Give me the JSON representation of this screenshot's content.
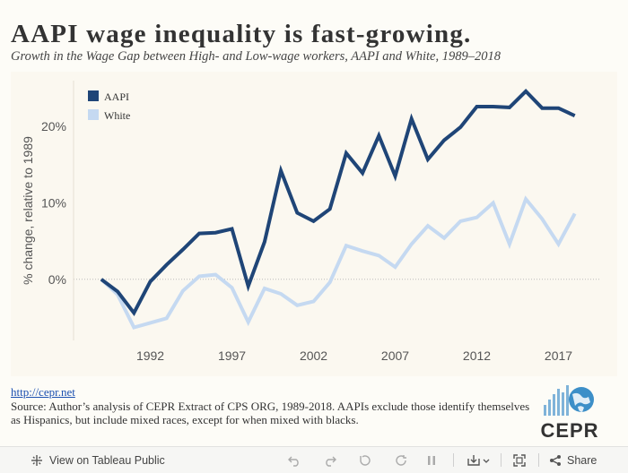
{
  "title": "AAPI  wage  inequality  is  fast-growing.",
  "subtitle": "Growth in the Wage Gap between High- and Low-wage workers, AAPI and White, 1989–2018",
  "colors": {
    "aapi": "#1f4577",
    "white": "#c5d9f1",
    "axis_text": "#555555"
  },
  "chart_data": {
    "type": "line",
    "ylabel": "% change, relative to 1989",
    "xlabel": "",
    "xlim": [
      1987.3,
      2019.5
    ],
    "ylim": [
      -8,
      26
    ],
    "yticks": [
      0,
      10,
      20
    ],
    "ytick_labels": [
      "0%",
      "10%",
      "20%"
    ],
    "xticks": [
      1992,
      1997,
      2002,
      2007,
      2012,
      2017
    ],
    "xtick_labels": [
      "1992",
      "1997",
      "2002",
      "2007",
      "2012",
      "2017"
    ],
    "legend_position": "top-left",
    "x": [
      1989,
      1990,
      1991,
      1992,
      1993,
      1994,
      1995,
      1996,
      1997,
      1998,
      1999,
      2000,
      2001,
      2002,
      2003,
      2004,
      2005,
      2006,
      2007,
      2008,
      2009,
      2010,
      2011,
      2012,
      2013,
      2014,
      2015,
      2016,
      2017,
      2018
    ],
    "series": [
      {
        "name": "AAPI",
        "values": [
          0,
          -1.6,
          -4.4,
          -0.3,
          1.9,
          3.9,
          6.0,
          6.1,
          6.6,
          -0.9,
          4.9,
          14.2,
          8.7,
          7.6,
          9.2,
          16.5,
          13.9,
          18.8,
          13.5,
          21.0,
          15.7,
          18.2,
          19.9,
          22.6,
          22.6,
          22.5,
          24.6,
          22.4,
          22.4,
          21.4
        ]
      },
      {
        "name": "White",
        "values": [
          0,
          -2.0,
          -6.3,
          -5.7,
          -5.1,
          -1.5,
          0.4,
          0.6,
          -1.1,
          -5.6,
          -1.2,
          -1.9,
          -3.4,
          -2.9,
          -0.4,
          4.4,
          3.7,
          3.1,
          1.6,
          4.6,
          7.0,
          5.4,
          7.6,
          8.1,
          10.0,
          4.6,
          10.5,
          7.9,
          4.6,
          8.6
        ]
      }
    ]
  },
  "source": {
    "link_text": "http://cepr.net",
    "text": "Source: Author’s analysis of CEPR Extract of CPS ORG, 1989-2018. AAPIs exclude those identify themselves as Hispanics, but include mixed races, except for when mixed with blacks."
  },
  "logo": {
    "text": "CEPR",
    "icon": "cepr-logo-icon"
  },
  "toolbar": {
    "view_label": "View on Tableau Public",
    "share_label": "Share",
    "icons": [
      "tableau-icon",
      "undo-icon",
      "redo-icon",
      "revert-icon",
      "refresh-icon",
      "pause-icon",
      "download-icon",
      "fullscreen-icon",
      "share-icon"
    ]
  }
}
